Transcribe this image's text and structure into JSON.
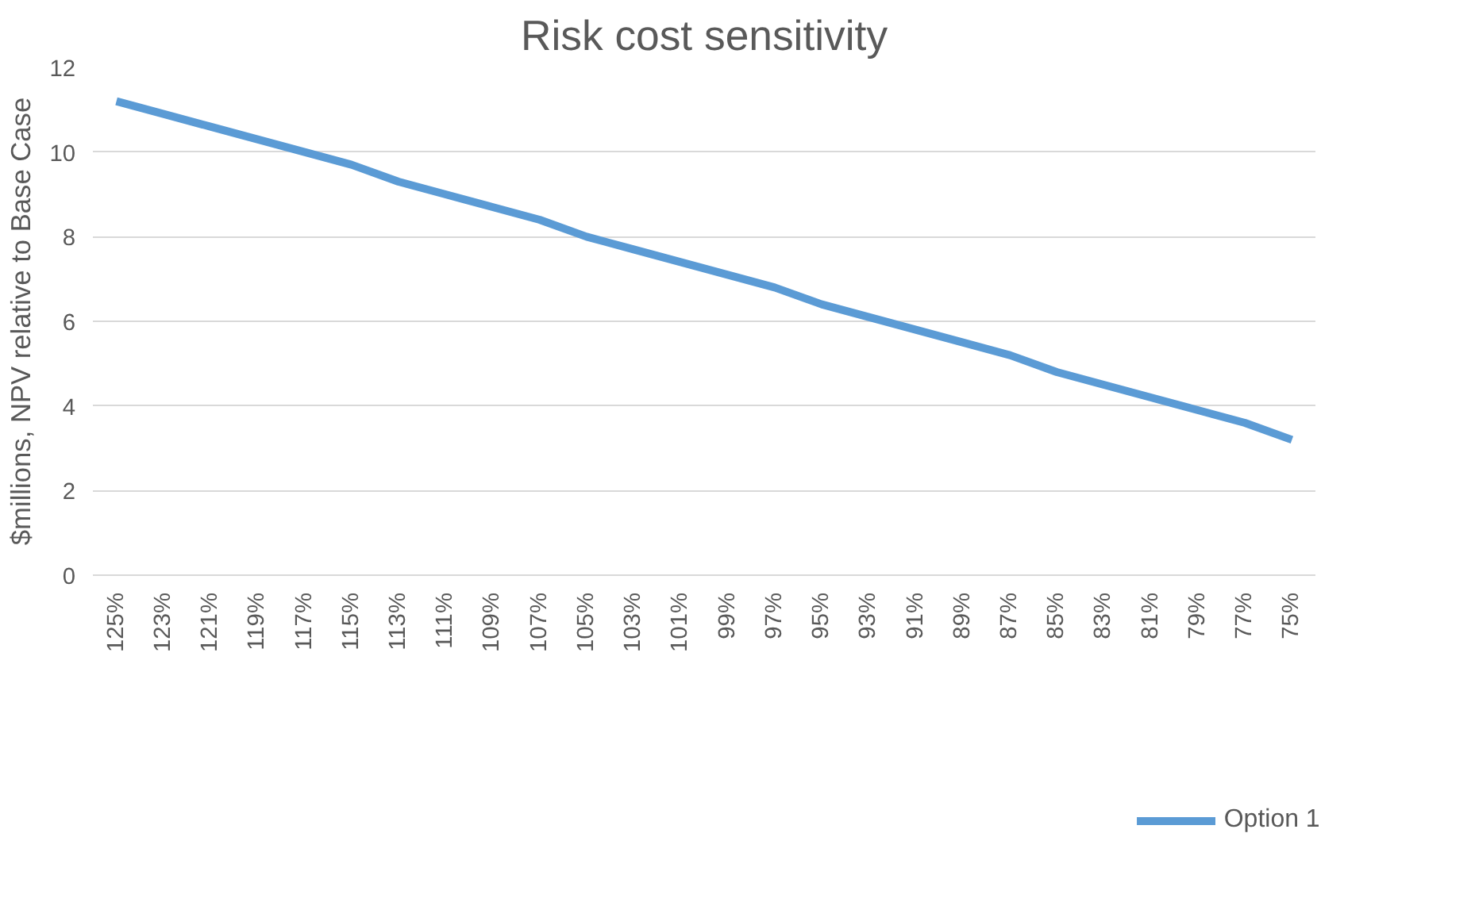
{
  "chart_data": {
    "type": "line",
    "title": "Risk cost sensitivity",
    "ylabel": "$millions, NPV relative to Base Case",
    "categories": [
      "125%",
      "123%",
      "121%",
      "119%",
      "117%",
      "115%",
      "113%",
      "111%",
      "109%",
      "107%",
      "105%",
      "103%",
      "101%",
      "99%",
      "97%",
      "95%",
      "93%",
      "91%",
      "89%",
      "87%",
      "85%",
      "83%",
      "81%",
      "79%",
      "77%",
      "75%"
    ],
    "series": [
      {
        "name": "Option 1",
        "color": "#5b9bd5",
        "values": [
          11.2,
          10.9,
          10.6,
          10.3,
          10.0,
          9.7,
          9.3,
          9.0,
          8.7,
          8.4,
          8.0,
          7.7,
          7.4,
          7.1,
          6.8,
          6.4,
          6.1,
          5.8,
          5.5,
          5.2,
          4.8,
          4.5,
          4.2,
          3.9,
          3.6,
          3.2
        ]
      }
    ],
    "ylim": [
      0,
      12
    ],
    "yticks": [
      0,
      2,
      4,
      6,
      8,
      10,
      12
    ],
    "grid": "y",
    "legend": "bottom",
    "marker": "none",
    "line_style": "solid"
  }
}
